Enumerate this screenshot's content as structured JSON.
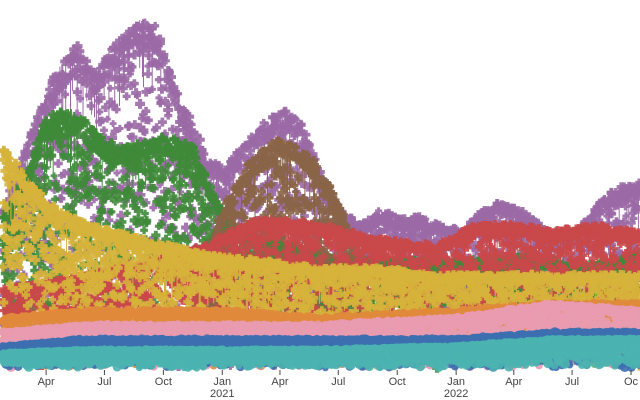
{
  "chart_data": {
    "type": "scatter",
    "title": "",
    "xlabel": "",
    "ylabel": "",
    "x_axis": {
      "ticks": [
        {
          "date": "2020-04-01",
          "label": "Apr",
          "year": ""
        },
        {
          "date": "2020-07-01",
          "label": "Jul",
          "year": ""
        },
        {
          "date": "2020-10-01",
          "label": "Oct",
          "year": ""
        },
        {
          "date": "2021-01-01",
          "label": "Jan",
          "year": "2021"
        },
        {
          "date": "2021-04-01",
          "label": "Apr",
          "year": ""
        },
        {
          "date": "2021-07-01",
          "label": "Jul",
          "year": ""
        },
        {
          "date": "2021-10-01",
          "label": "Oct",
          "year": ""
        },
        {
          "date": "2022-01-01",
          "label": "Jan",
          "year": "2022"
        },
        {
          "date": "2022-04-01",
          "label": "Apr",
          "year": ""
        },
        {
          "date": "2022-07-01",
          "label": "Jul",
          "year": ""
        },
        {
          "date": "2022-10-01",
          "label": "Oc",
          "year": ""
        }
      ],
      "range": [
        "2020-01-20",
        "2022-10-15"
      ]
    },
    "y_axis": {
      "range": [
        0,
        100
      ],
      "visible": false
    },
    "grid": false,
    "legend": "none",
    "marker_symbols": [
      "cross",
      "circle"
    ],
    "series": [
      {
        "color": "#9b6aa6",
        "symbol": "cross",
        "envelope": [
          [
            "2020-01-25",
            44
          ],
          [
            "2020-03-01",
            62
          ],
          [
            "2020-04-15",
            82
          ],
          [
            "2020-05-20",
            90
          ],
          [
            "2020-06-15",
            82
          ],
          [
            "2020-07-15",
            90
          ],
          [
            "2020-08-10",
            95
          ],
          [
            "2020-08-28",
            97
          ],
          [
            "2020-09-20",
            95
          ],
          [
            "2020-10-15",
            80
          ],
          [
            "2020-11-10",
            70
          ],
          [
            "2020-12-10",
            58
          ],
          [
            "2021-01-05",
            56
          ],
          [
            "2021-02-05",
            62
          ],
          [
            "2021-03-05",
            68
          ],
          [
            "2021-04-05",
            72
          ],
          [
            "2021-05-05",
            68
          ],
          [
            "2021-06-05",
            54
          ],
          [
            "2021-07-05",
            44
          ],
          [
            "2021-08-05",
            40
          ],
          [
            "2021-09-05",
            44
          ],
          [
            "2021-10-05",
            42
          ],
          [
            "2021-11-05",
            42
          ],
          [
            "2021-12-05",
            40
          ],
          [
            "2022-01-10",
            38
          ],
          [
            "2022-02-10",
            44
          ],
          [
            "2022-03-10",
            46
          ],
          [
            "2022-04-10",
            44
          ],
          [
            "2022-05-10",
            40
          ],
          [
            "2022-06-10",
            36
          ],
          [
            "2022-07-10",
            38
          ],
          [
            "2022-08-10",
            46
          ],
          [
            "2022-09-10",
            50
          ],
          [
            "2022-10-15",
            52
          ]
        ]
      },
      {
        "color": "#3f8a3a",
        "symbol": "cross",
        "envelope": [
          [
            "2020-01-25",
            42
          ],
          [
            "2020-03-01",
            54
          ],
          [
            "2020-04-01",
            70
          ],
          [
            "2020-05-10",
            72
          ],
          [
            "2020-06-15",
            66
          ],
          [
            "2020-07-15",
            62
          ],
          [
            "2020-08-15",
            62
          ],
          [
            "2020-09-15",
            64
          ],
          [
            "2020-10-15",
            64
          ],
          [
            "2020-11-15",
            62
          ],
          [
            "2020-12-15",
            50
          ],
          [
            "2021-01-15",
            40
          ],
          [
            "2021-03-01",
            36
          ],
          [
            "2021-05-01",
            34
          ],
          [
            "2021-07-01",
            30
          ],
          [
            "2021-09-01",
            30
          ],
          [
            "2021-11-01",
            30
          ],
          [
            "2022-01-01",
            30
          ],
          [
            "2022-03-01",
            30
          ],
          [
            "2022-05-01",
            32
          ],
          [
            "2022-07-01",
            28
          ],
          [
            "2022-09-01",
            30
          ],
          [
            "2022-10-15",
            32
          ]
        ]
      },
      {
        "color": "#8a6447",
        "symbol": "cross",
        "envelope": [
          [
            "2020-11-20",
            20
          ],
          [
            "2021-01-01",
            44
          ],
          [
            "2021-02-15",
            58
          ],
          [
            "2021-04-01",
            64
          ],
          [
            "2021-05-15",
            60
          ],
          [
            "2021-06-15",
            52
          ],
          [
            "2021-07-15",
            40
          ],
          [
            "2021-08-15",
            20
          ]
        ]
      },
      {
        "color": "#c9484a",
        "symbol": "cross",
        "envelope": [
          [
            "2020-01-25",
            22
          ],
          [
            "2020-06-01",
            26
          ],
          [
            "2020-12-01",
            34
          ],
          [
            "2021-03-01",
            42
          ],
          [
            "2021-06-01",
            40
          ],
          [
            "2021-09-01",
            36
          ],
          [
            "2021-12-01",
            34
          ],
          [
            "2022-02-01",
            40
          ],
          [
            "2022-04-01",
            40
          ],
          [
            "2022-06-01",
            38
          ],
          [
            "2022-08-01",
            40
          ],
          [
            "2022-10-15",
            38
          ]
        ]
      },
      {
        "color": "#d6b33b",
        "symbol": "cross",
        "envelope": [
          [
            "2020-01-25",
            62
          ],
          [
            "2020-02-20",
            56
          ],
          [
            "2020-04-01",
            46
          ],
          [
            "2020-06-01",
            40
          ],
          [
            "2020-09-01",
            36
          ],
          [
            "2020-12-01",
            32
          ],
          [
            "2021-03-01",
            30
          ],
          [
            "2021-06-01",
            28
          ],
          [
            "2021-09-01",
            28
          ],
          [
            "2021-12-01",
            26
          ],
          [
            "2022-03-01",
            26
          ],
          [
            "2022-06-01",
            26
          ],
          [
            "2022-09-01",
            26
          ],
          [
            "2022-10-15",
            26
          ]
        ]
      },
      {
        "color": "#e08a3c",
        "symbol": "circle",
        "envelope": [
          [
            "2020-01-25",
            14
          ],
          [
            "2020-06-01",
            16
          ],
          [
            "2021-01-01",
            16
          ],
          [
            "2021-06-01",
            14
          ],
          [
            "2022-01-01",
            16
          ],
          [
            "2022-06-01",
            18
          ],
          [
            "2022-10-15",
            18
          ]
        ]
      },
      {
        "color": "#e99bb0",
        "symbol": "circle",
        "envelope": [
          [
            "2020-01-25",
            10
          ],
          [
            "2020-06-01",
            12
          ],
          [
            "2021-01-01",
            12
          ],
          [
            "2021-06-01",
            12
          ],
          [
            "2022-01-01",
            14
          ],
          [
            "2022-06-01",
            18
          ],
          [
            "2022-10-15",
            16
          ]
        ]
      },
      {
        "color": "#3d6fb0",
        "symbol": "circle",
        "envelope": [
          [
            "2020-01-25",
            6
          ],
          [
            "2020-06-01",
            8
          ],
          [
            "2021-01-01",
            8
          ],
          [
            "2021-06-01",
            8
          ],
          [
            "2022-01-01",
            8
          ],
          [
            "2022-06-01",
            10
          ],
          [
            "2022-10-15",
            10
          ]
        ]
      },
      {
        "color": "#4bb3b0",
        "symbol": "circle",
        "envelope": [
          [
            "2020-01-25",
            4
          ],
          [
            "2020-06-01",
            5
          ],
          [
            "2021-01-01",
            5
          ],
          [
            "2021-06-01",
            5
          ],
          [
            "2022-01-01",
            6
          ],
          [
            "2022-06-01",
            8
          ],
          [
            "2022-10-15",
            8
          ]
        ]
      }
    ]
  }
}
